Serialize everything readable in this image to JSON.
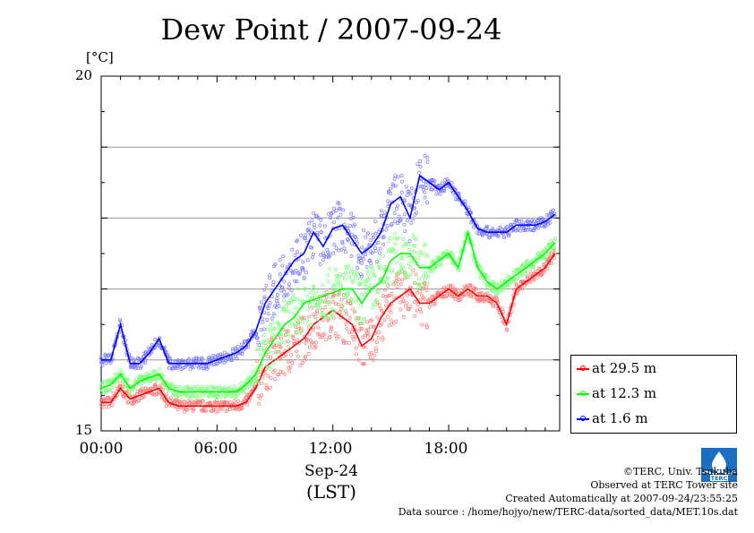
{
  "title": "Dew Point / 2007-09-24",
  "y_unit": "[°C]",
  "y_ticks": {
    "top": "20",
    "bottom": "15"
  },
  "x_ticks": [
    "00:00",
    "06:00",
    "12:00",
    "18:00"
  ],
  "x_date": "Sep-24",
  "x_tz": "(LST)",
  "legend": [
    {
      "label": "at 29.5 m",
      "color": "#ff0000"
    },
    {
      "label": "at 12.3 m",
      "color": "#00ff00"
    },
    {
      "label": "at 1.6 m",
      "color": "#0000ff"
    }
  ],
  "credits": {
    "line1": "©TERC, Univ. Tsukuba",
    "line2": "Observed at TERC Tower site",
    "line3": "Created Automatically at 2007-09-24/23:55:25",
    "line4": "Data source : /home/hojyo/new/TERC-data/sorted_data/MET.10s.dat"
  },
  "logo_text": "TERC",
  "chart_data": {
    "type": "line",
    "title": "Dew Point / 2007-09-24",
    "xlabel": "Sep-24 (LST)",
    "ylabel": "[°C]",
    "xlim": [
      0,
      23.75
    ],
    "ylim": [
      15,
      20
    ],
    "x_unit": "hour",
    "grid": true,
    "legend_position": "bottom-right outside",
    "x": [
      0,
      0.5,
      1,
      1.5,
      2,
      2.5,
      3,
      3.5,
      4,
      4.5,
      5,
      5.5,
      6,
      6.5,
      7,
      7.5,
      8,
      8.5,
      9,
      9.5,
      10,
      10.5,
      11,
      11.5,
      12,
      12.5,
      13,
      13.5,
      14,
      14.5,
      15,
      15.5,
      16,
      16.5,
      17,
      17.5,
      18,
      18.5,
      19,
      19.5,
      20,
      20.5,
      21,
      21.5,
      22,
      22.5,
      23,
      23.5
    ],
    "series": [
      {
        "name": "at 29.5 m",
        "color": "#ff0000",
        "values": [
          15.4,
          15.4,
          15.6,
          15.45,
          15.5,
          15.55,
          15.6,
          15.4,
          15.35,
          15.35,
          15.35,
          15.35,
          15.35,
          15.35,
          15.35,
          15.4,
          15.6,
          15.9,
          16.0,
          16.1,
          16.2,
          16.3,
          16.5,
          16.6,
          16.7,
          16.6,
          16.5,
          16.2,
          16.3,
          16.6,
          16.8,
          16.9,
          17.0,
          16.8,
          16.8,
          16.9,
          17.0,
          16.9,
          17.0,
          16.9,
          16.9,
          16.8,
          16.5,
          17.0,
          17.1,
          17.2,
          17.3,
          17.5
        ]
      },
      {
        "name": "at 12.3 m",
        "color": "#00ff00",
        "values": [
          15.6,
          15.65,
          15.8,
          15.6,
          15.7,
          15.75,
          15.8,
          15.6,
          15.55,
          15.55,
          15.55,
          15.55,
          15.55,
          15.55,
          15.55,
          15.65,
          15.8,
          16.1,
          16.3,
          16.5,
          16.6,
          16.8,
          16.85,
          16.9,
          16.95,
          17.0,
          17.0,
          16.8,
          17.0,
          17.1,
          17.4,
          17.5,
          17.5,
          17.3,
          17.3,
          17.4,
          17.5,
          17.3,
          17.8,
          17.3,
          17.1,
          17.0,
          17.1,
          17.2,
          17.3,
          17.4,
          17.5,
          17.65
        ]
      },
      {
        "name": "at 1.6 m",
        "color": "#0000ff",
        "values": [
          16.0,
          16.0,
          16.5,
          15.95,
          15.95,
          16.1,
          16.3,
          15.95,
          15.95,
          15.95,
          15.95,
          15.95,
          16.0,
          16.05,
          16.1,
          16.2,
          16.4,
          16.8,
          17.0,
          17.2,
          17.4,
          17.5,
          17.8,
          17.6,
          17.85,
          17.9,
          17.7,
          17.5,
          17.6,
          17.8,
          18.2,
          18.3,
          18.0,
          18.6,
          18.5,
          18.4,
          18.5,
          18.3,
          18.1,
          17.85,
          17.8,
          17.8,
          17.8,
          17.9,
          17.9,
          17.9,
          17.95,
          18.05
        ]
      }
    ]
  }
}
